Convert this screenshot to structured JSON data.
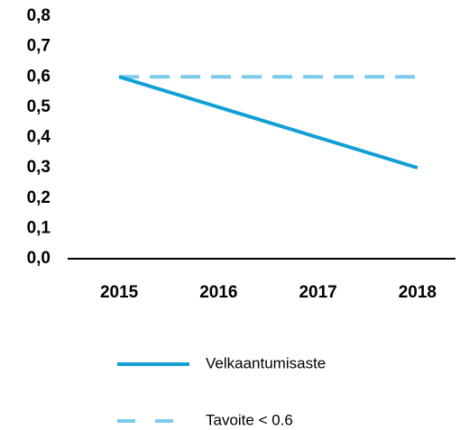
{
  "chart_data": {
    "type": "line",
    "categories": [
      "2015",
      "2016",
      "2017",
      "2018"
    ],
    "series": [
      {
        "name": "Velkaantumisaste",
        "color": "#119fd6",
        "style": "solid",
        "values": [
          0.6,
          0.5,
          0.4,
          0.3
        ]
      },
      {
        "name": "Tavoite < 0.6",
        "color": "#7ccbea",
        "style": "dashed",
        "values": [
          0.6,
          0.6,
          0.6,
          0.6
        ]
      }
    ],
    "ylim": [
      0,
      0.8
    ],
    "yticks": [
      {
        "value": 0,
        "label": "0,0"
      },
      {
        "value": 0.1,
        "label": "0,1"
      },
      {
        "value": 0.2,
        "label": "0,2"
      },
      {
        "value": 0.3,
        "label": "0,3"
      },
      {
        "value": 0.4,
        "label": "0,4"
      },
      {
        "value": 0.5,
        "label": "0,5"
      },
      {
        "value": 0.6,
        "label": "0,6"
      },
      {
        "value": 0.7,
        "label": "0,7"
      },
      {
        "value": 0.8,
        "label": "0,8"
      }
    ],
    "grid": false,
    "legend": "bottom"
  }
}
